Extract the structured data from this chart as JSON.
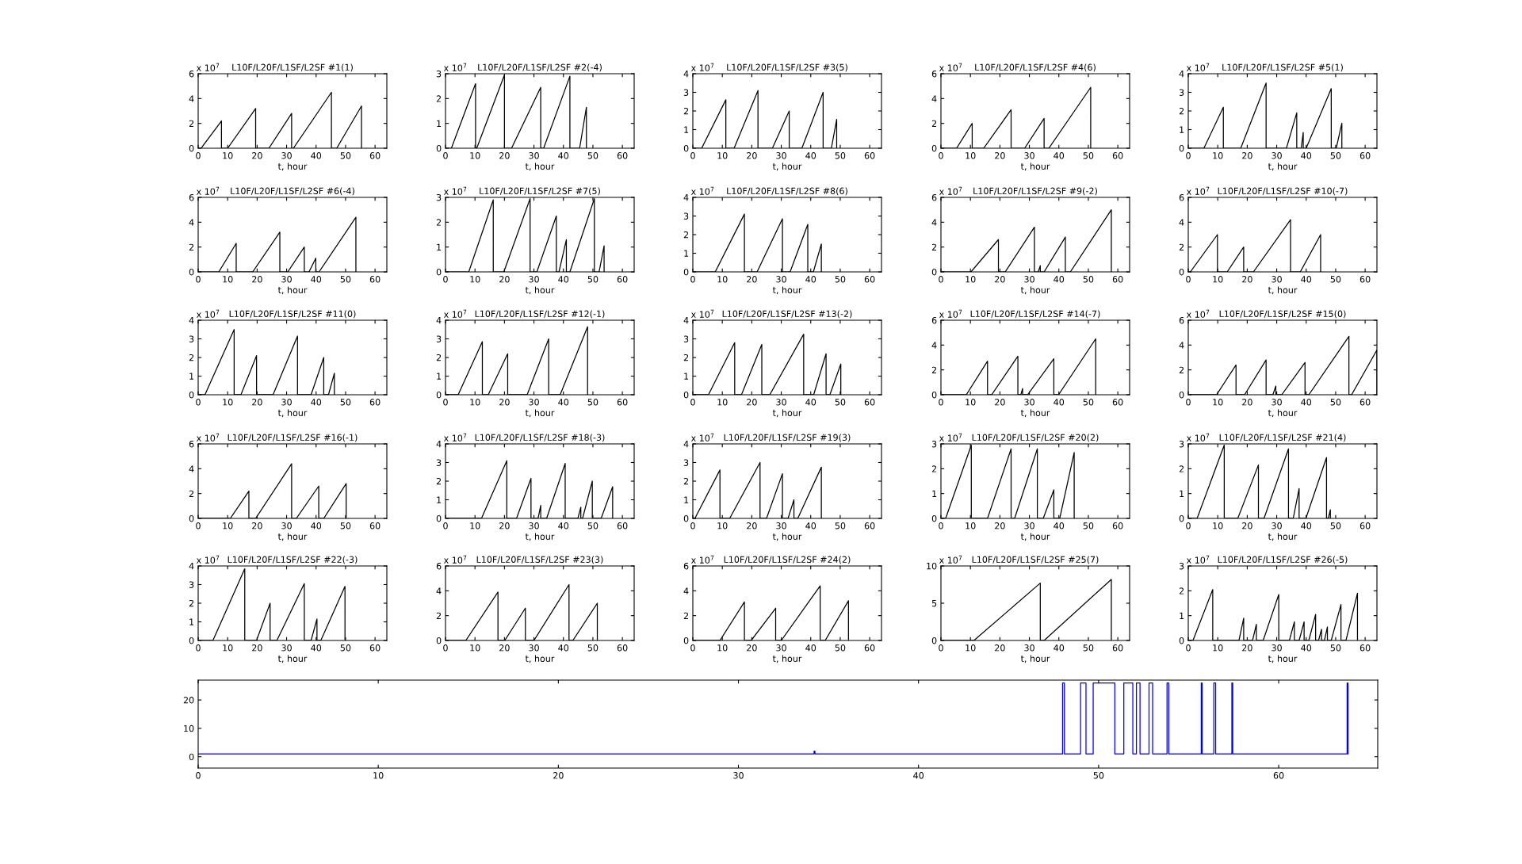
{
  "chart_data": [
    {
      "type": "line",
      "title": "L10F/L20F/L1SF/L2SF #1(1)",
      "xlabel": "t, hour",
      "annotations": [
        "x 10$^{7}$"
      ],
      "color": "#000000",
      "xlim": [
        0,
        64
      ],
      "ylim": [
        0,
        6
      ],
      "xticks": [
        0,
        10,
        20,
        30,
        40,
        50,
        60
      ],
      "yticks": [
        0,
        2,
        4,
        6
      ],
      "x": [
        0,
        1,
        7.9,
        7.9,
        10,
        19.5,
        19.5,
        24,
        31.7,
        31.7,
        32.3,
        45.2,
        45.2,
        47,
        55.4,
        55.4
      ],
      "values": [
        0,
        0,
        2.2,
        0,
        0,
        3.2,
        0,
        0,
        2.8,
        0,
        0,
        4.5,
        0,
        0,
        3.4,
        0
      ]
    },
    {
      "type": "line",
      "title": "L10F/L20F/L1SF/L2SF #2(-4)",
      "xlabel": "t, hour",
      "annotations": [
        "x 10$^{7}$"
      ],
      "color": "#000000",
      "xlim": [
        0,
        64
      ],
      "ylim": [
        0,
        3
      ],
      "xticks": [
        0,
        10,
        20,
        30,
        40,
        50,
        60
      ],
      "yticks": [
        0,
        1,
        2,
        3
      ],
      "x": [
        0,
        2,
        10.2,
        10.2,
        10.6,
        20,
        20,
        22.4,
        32.3,
        32.3,
        33.3,
        42.2,
        42.2,
        45.5,
        47.8,
        47.8
      ],
      "values": [
        0,
        0,
        2.6,
        0,
        0,
        2.95,
        0,
        0,
        2.45,
        0,
        0,
        2.9,
        0,
        0,
        1.65,
        0
      ]
    },
    {
      "type": "line",
      "title": "L10F/L20F/L1SF/L2SF #3(5)",
      "xlabel": "t, hour",
      "annotations": [
        "x 10$^{7}$"
      ],
      "color": "#000000",
      "xlim": [
        0,
        64
      ],
      "ylim": [
        0,
        4
      ],
      "xticks": [
        0,
        10,
        20,
        30,
        40,
        50,
        60
      ],
      "yticks": [
        0,
        1,
        2,
        3,
        4
      ],
      "x": [
        0,
        3,
        11.2,
        11.2,
        14,
        22.1,
        22.1,
        27,
        32.7,
        32.7,
        37,
        44.2,
        44.2,
        47,
        48.8,
        48.8
      ],
      "values": [
        0,
        0,
        2.6,
        0,
        0,
        3.1,
        0,
        0,
        2,
        0,
        0,
        3,
        0,
        0,
        1.55,
        0
      ]
    },
    {
      "type": "line",
      "title": "L10F/L20F/L1SF/L2SF #4(6)",
      "xlabel": "t, hour",
      "annotations": [
        "x 10$^{7}$"
      ],
      "color": "#000000",
      "xlim": [
        0,
        64
      ],
      "ylim": [
        0,
        6
      ],
      "xticks": [
        0,
        10,
        20,
        30,
        40,
        50,
        60
      ],
      "yticks": [
        0,
        2,
        4,
        6
      ],
      "x": [
        0,
        5.3,
        10.6,
        10.6,
        14.5,
        23.8,
        23.8,
        28.4,
        35,
        35,
        36.6,
        50.8,
        50.8
      ],
      "values": [
        0,
        0,
        2,
        0,
        0,
        3.1,
        0,
        0,
        2.4,
        0,
        0,
        4.9,
        0
      ]
    },
    {
      "type": "line",
      "title": "L10F/L20F/L1SF/L2SF #5(1)",
      "xlabel": "t, hour",
      "annotations": [
        "x 10$^{7}$"
      ],
      "color": "#000000",
      "xlim": [
        0,
        64
      ],
      "ylim": [
        0,
        4
      ],
      "xticks": [
        0,
        10,
        20,
        30,
        40,
        50,
        60
      ],
      "yticks": [
        0,
        1,
        2,
        3,
        4
      ],
      "x": [
        0,
        5.3,
        11.9,
        11.9,
        17.8,
        26.4,
        26.4,
        33.3,
        36.8,
        36.8,
        38.3,
        39,
        39,
        40,
        48.5,
        48.5,
        50.2,
        52.1,
        52.1
      ],
      "values": [
        0,
        0,
        2.2,
        0,
        0,
        3.5,
        0,
        0,
        1.9,
        0,
        0,
        0.85,
        0,
        0,
        3.2,
        0,
        0,
        1.35,
        0
      ]
    },
    {
      "type": "line",
      "title": "L10F/L20F/L1SF/L2SF #6(-4)",
      "xlabel": "t, hour",
      "annotations": [
        "x 10$^{7}$"
      ],
      "color": "#000000",
      "xlim": [
        0,
        64
      ],
      "ylim": [
        0,
        6
      ],
      "xticks": [
        0,
        10,
        20,
        30,
        40,
        50,
        60
      ],
      "yticks": [
        0,
        2,
        4,
        6
      ],
      "x": [
        0,
        7,
        12.9,
        12.9,
        18.5,
        27.7,
        27.7,
        30.4,
        36,
        36,
        37.6,
        39.9,
        39.9,
        41,
        53.5,
        53.5
      ],
      "values": [
        0,
        0,
        2.3,
        0,
        0,
        3.2,
        0,
        0,
        2,
        0,
        0,
        1.1,
        0,
        0,
        4.4,
        0
      ]
    },
    {
      "type": "line",
      "title": "L10F/L20F/L1SF/L2SF #7(5)",
      "xlabel": "t, hour",
      "annotations": [
        "x 10$^{7}$"
      ],
      "color": "#000000",
      "xlim": [
        0,
        64
      ],
      "ylim": [
        0,
        3
      ],
      "xticks": [
        0,
        10,
        20,
        30,
        40,
        50,
        60
      ],
      "yticks": [
        0,
        1,
        2,
        3
      ],
      "x": [
        0,
        7.9,
        16.2,
        16.2,
        19.8,
        28.7,
        28.7,
        31,
        37.6,
        37.6,
        38.5,
        41,
        41,
        42.2,
        50.5,
        50.5,
        52.1,
        53.8,
        53.8
      ],
      "values": [
        0,
        0,
        2.9,
        0,
        0,
        2.95,
        0,
        0,
        2.25,
        0,
        0,
        1.3,
        0,
        0,
        2.95,
        0,
        0,
        1.05,
        0
      ]
    },
    {
      "type": "line",
      "title": "L10F/L20F/L1SF/L2SF #8(6)",
      "xlabel": "t, hour",
      "annotations": [
        "x 10$^{7}$"
      ],
      "color": "#000000",
      "xlim": [
        0,
        64
      ],
      "ylim": [
        0,
        4
      ],
      "xticks": [
        0,
        10,
        20,
        30,
        40,
        50,
        60
      ],
      "yticks": [
        0,
        1,
        2,
        3,
        4
      ],
      "x": [
        0,
        7.6,
        17.5,
        17.5,
        21.8,
        30.4,
        30.4,
        33,
        39,
        39,
        40.9,
        43.6,
        43.6
      ],
      "values": [
        0,
        0,
        3.1,
        0,
        0,
        2.85,
        0,
        0,
        2.55,
        0,
        0,
        1.5,
        0
      ]
    },
    {
      "type": "line",
      "title": "L10F/L20F/L1SF/L2SF #9(-2)",
      "xlabel": "t, hour",
      "annotations": [
        "x 10$^{7}$"
      ],
      "color": "#000000",
      "xlim": [
        0,
        64
      ],
      "ylim": [
        0,
        6
      ],
      "xticks": [
        0,
        10,
        20,
        30,
        40,
        50,
        60
      ],
      "yticks": [
        0,
        2,
        4,
        6
      ],
      "x": [
        0,
        10.2,
        19.5,
        19.5,
        21.8,
        31.7,
        31.7,
        33,
        33.7,
        33.7,
        35,
        42.2,
        42.2,
        43.9,
        57.8,
        57.8
      ],
      "values": [
        0,
        0,
        2.6,
        0,
        0,
        3.6,
        0,
        0,
        0.5,
        0,
        0,
        2.8,
        0,
        0,
        5,
        0
      ]
    },
    {
      "type": "line",
      "title": "L10F/L20F/L1SF/L2SF #10(-7)",
      "xlabel": "t, hour",
      "annotations": [
        "x 10$^{7}$"
      ],
      "color": "#000000",
      "xlim": [
        0,
        64
      ],
      "ylim": [
        0,
        6
      ],
      "xticks": [
        0,
        10,
        20,
        30,
        40,
        50,
        60
      ],
      "yticks": [
        0,
        2,
        4,
        6
      ],
      "x": [
        0,
        0.7,
        9.9,
        9.9,
        13.2,
        18.8,
        18.8,
        22.1,
        34.7,
        34.7,
        38,
        44.9,
        44.9
      ],
      "values": [
        0,
        0,
        3,
        0,
        0,
        2,
        0,
        0,
        4.2,
        0,
        0,
        3,
        0
      ]
    },
    {
      "type": "line",
      "title": "L10F/L20F/L1SF/L2SF #11(0)",
      "xlabel": "t, hour",
      "annotations": [
        "x 10$^{7}$"
      ],
      "color": "#000000",
      "xlim": [
        0,
        64
      ],
      "ylim": [
        0,
        4
      ],
      "xticks": [
        0,
        10,
        20,
        30,
        40,
        50,
        60
      ],
      "yticks": [
        0,
        1,
        2,
        3,
        4
      ],
      "x": [
        0,
        2.3,
        12.2,
        12.2,
        14.5,
        19.8,
        19.8,
        25.4,
        33.7,
        33.7,
        38.3,
        42.6,
        42.6,
        44.2,
        46.2,
        46.2
      ],
      "values": [
        0,
        0,
        3.5,
        0,
        0,
        2.1,
        0,
        0,
        3.15,
        0,
        0,
        2,
        0,
        0,
        1.15,
        0
      ]
    },
    {
      "type": "line",
      "title": "L10F/L20F/L1SF/L2SF #12(-1)",
      "xlabel": "t, hour",
      "annotations": [
        "x 10$^{7}$"
      ],
      "color": "#000000",
      "xlim": [
        0,
        64
      ],
      "ylim": [
        0,
        4
      ],
      "xticks": [
        0,
        10,
        20,
        30,
        40,
        50,
        60
      ],
      "yticks": [
        0,
        1,
        2,
        3,
        4
      ],
      "x": [
        0,
        4.3,
        12.5,
        12.5,
        14.5,
        21.1,
        21.1,
        27.7,
        35,
        35,
        38.9,
        48.2,
        48.2
      ],
      "values": [
        0,
        0,
        2.85,
        0,
        0,
        2.2,
        0,
        0,
        3,
        0,
        0,
        3.65,
        0
      ]
    },
    {
      "type": "line",
      "title": "L10F/L20F/L1SF/L2SF #13(-2)",
      "xlabel": "t, hour",
      "annotations": [
        "x 10$^{7}$"
      ],
      "color": "#000000",
      "xlim": [
        0,
        64
      ],
      "ylim": [
        0,
        4
      ],
      "xticks": [
        0,
        10,
        20,
        30,
        40,
        50,
        60
      ],
      "yticks": [
        0,
        1,
        2,
        3,
        4
      ],
      "x": [
        0,
        5.3,
        14.2,
        14.2,
        16.5,
        23.4,
        23.4,
        26.1,
        37.6,
        37.6,
        41,
        45.2,
        45.2,
        46.5,
        50.2,
        50.2
      ],
      "values": [
        0,
        0,
        2.8,
        0,
        0,
        2.7,
        0,
        0,
        3.25,
        0,
        0,
        2.2,
        0,
        0,
        1.65,
        0
      ]
    },
    {
      "type": "line",
      "title": "L10F/L20F/L1SF/L2SF #14(-7)",
      "xlabel": "t, hour",
      "annotations": [
        "x 10$^{7}$"
      ],
      "color": "#000000",
      "xlim": [
        0,
        64
      ],
      "ylim": [
        0,
        6
      ],
      "xticks": [
        0,
        10,
        20,
        30,
        40,
        50,
        60
      ],
      "yticks": [
        0,
        2,
        4,
        6
      ],
      "x": [
        0,
        8.6,
        15.8,
        15.8,
        17.2,
        26.1,
        26.1,
        27.1,
        27.7,
        27.7,
        29.4,
        38.3,
        38.3,
        39.9,
        52.5,
        52.5
      ],
      "values": [
        0,
        0,
        2.7,
        0,
        0,
        3.1,
        0,
        0,
        0.5,
        0,
        0,
        2.9,
        0,
        0,
        4.5,
        0
      ]
    },
    {
      "type": "line",
      "title": "L10F/L20F/L1SF/L2SF #15(0)",
      "xlabel": "t, hour",
      "annotations": [
        "x 10$^{7}$"
      ],
      "color": "#000000",
      "xlim": [
        0,
        64
      ],
      "ylim": [
        0,
        6
      ],
      "xticks": [
        0,
        10,
        20,
        30,
        40,
        50,
        60
      ],
      "yticks": [
        0,
        2,
        4,
        6
      ],
      "x": [
        0,
        9.6,
        16.2,
        16.2,
        19.1,
        26.4,
        26.4,
        28.7,
        29.7,
        29.7,
        31.7,
        39.6,
        39.6,
        40.9,
        54.5,
        54.5,
        55.4,
        64,
        64
      ],
      "values": [
        0,
        0,
        2.4,
        0,
        0,
        2.8,
        0,
        0,
        0.7,
        0,
        0,
        2.6,
        0,
        0,
        4.7,
        0,
        0,
        3.6,
        0
      ]
    },
    {
      "type": "line",
      "title": "L10F/L20F/L1SF/L2SF #16(-1)",
      "xlabel": "t, hour",
      "annotations": [
        "x 10$^{7}$"
      ],
      "color": "#000000",
      "xlim": [
        0,
        64
      ],
      "ylim": [
        0,
        6
      ],
      "xticks": [
        0,
        10,
        20,
        30,
        40,
        50,
        60
      ],
      "yticks": [
        0,
        2,
        4,
        6
      ],
      "x": [
        0,
        10.9,
        17.2,
        17.2,
        19.5,
        31.7,
        31.7,
        33.3,
        40.9,
        40.9,
        42.6,
        50.2,
        50.2
      ],
      "values": [
        0,
        0,
        2.2,
        0,
        0,
        4.4,
        0,
        0,
        2.6,
        0,
        0,
        2.8,
        0
      ]
    },
    {
      "type": "line",
      "title": "L10F/L20F/L1SF/L2SF #18(-3)",
      "xlabel": "t, hour",
      "annotations": [
        "x 10$^{7}$"
      ],
      "color": "#000000",
      "xlim": [
        0,
        64
      ],
      "ylim": [
        0,
        4
      ],
      "xticks": [
        0,
        10,
        20,
        30,
        40,
        50,
        60
      ],
      "yticks": [
        0,
        1,
        2,
        3,
        4
      ],
      "x": [
        0,
        12.2,
        20.8,
        20.8,
        24.1,
        29,
        29,
        31.4,
        32.3,
        32.3,
        34.3,
        40.6,
        40.6,
        44.9,
        45.9,
        45.9,
        46.5,
        49.8,
        49.8,
        52.8,
        56.7,
        56.7
      ],
      "values": [
        0,
        0,
        3.1,
        0,
        0,
        2.15,
        0,
        0,
        0.7,
        0,
        0,
        2.95,
        0,
        0,
        0.6,
        0,
        0,
        2,
        0,
        0,
        1.7,
        0
      ]
    },
    {
      "type": "line",
      "title": "L10F/L20F/L1SF/L2SF #19(3)",
      "xlabel": "t, hour",
      "annotations": [
        "x 10$^{7}$"
      ],
      "color": "#000000",
      "xlim": [
        0,
        64
      ],
      "ylim": [
        0,
        4
      ],
      "xticks": [
        0,
        10,
        20,
        30,
        40,
        50,
        60
      ],
      "yticks": [
        0,
        1,
        2,
        3,
        4
      ],
      "x": [
        0,
        0.7,
        9.2,
        9.2,
        12.5,
        22.8,
        22.8,
        25,
        30.4,
        30.4,
        32.3,
        34.3,
        34.3,
        35.6,
        43.6,
        43.6
      ],
      "values": [
        0,
        0,
        2.6,
        0,
        0,
        3,
        0,
        0,
        2.4,
        0,
        0,
        1,
        0,
        0,
        2.75,
        0
      ]
    },
    {
      "type": "line",
      "title": "L10F/L20F/L1SF/L2SF #20(2)",
      "xlabel": "t, hour",
      "annotations": [
        "x 10$^{7}$"
      ],
      "color": "#000000",
      "xlim": [
        0,
        64
      ],
      "ylim": [
        0,
        3
      ],
      "xticks": [
        0,
        10,
        20,
        30,
        40,
        50,
        60
      ],
      "yticks": [
        0,
        1,
        2,
        3
      ],
      "x": [
        0,
        1.6,
        10.3,
        10.3,
        15.8,
        23.8,
        23.8,
        25,
        32.7,
        32.7,
        34.7,
        38.3,
        38.3,
        40.3,
        45.2,
        45.2
      ],
      "values": [
        0,
        0,
        2.95,
        0,
        0,
        2.8,
        0,
        0,
        2.8,
        0,
        0,
        1.15,
        0,
        0,
        2.65,
        0
      ]
    },
    {
      "type": "line",
      "title": "L10F/L20F/L1SF/L2SF #21(4)",
      "xlabel": "t, hour",
      "annotations": [
        "x 10$^{7}$"
      ],
      "color": "#000000",
      "xlim": [
        0,
        64
      ],
      "ylim": [
        0,
        3
      ],
      "xticks": [
        0,
        10,
        20,
        30,
        40,
        50,
        60
      ],
      "yticks": [
        0,
        1,
        2,
        3
      ],
      "x": [
        0,
        3,
        12.2,
        12.2,
        16.8,
        23.8,
        23.8,
        25.7,
        34,
        34,
        35.6,
        37.6,
        37.6,
        39.9,
        46.9,
        46.9,
        47.5,
        48.2,
        48.2
      ],
      "values": [
        0,
        0,
        2.95,
        0,
        0,
        2.15,
        0,
        0,
        2.8,
        0,
        0,
        1.2,
        0,
        0,
        2.45,
        0,
        0,
        0.35,
        0
      ]
    },
    {
      "type": "line",
      "title": "L10F/L20F/L1SF/L2SF #22(-3)",
      "xlabel": "t, hour",
      "annotations": [
        "x 10$^{7}$"
      ],
      "color": "#000000",
      "xlim": [
        0,
        64
      ],
      "ylim": [
        0,
        4
      ],
      "xticks": [
        0,
        10,
        20,
        30,
        40,
        50,
        60
      ],
      "yticks": [
        0,
        1,
        2,
        3,
        4
      ],
      "x": [
        0,
        5,
        15.8,
        15.8,
        19.8,
        24.4,
        24.4,
        26.7,
        36,
        36,
        38.3,
        40.3,
        40.3,
        41.6,
        49.8,
        49.8
      ],
      "values": [
        0,
        0,
        3.85,
        0,
        0,
        2,
        0,
        0,
        3.05,
        0,
        0,
        1.15,
        0,
        0,
        2.9,
        0
      ]
    },
    {
      "type": "line",
      "title": "L10F/L20F/L1SF/L2SF #23(3)",
      "xlabel": "t, hour",
      "annotations": [
        "x 10$^{7}$"
      ],
      "color": "#000000",
      "xlim": [
        0,
        64
      ],
      "ylim": [
        0,
        6
      ],
      "xticks": [
        0,
        10,
        20,
        30,
        40,
        50,
        60
      ],
      "yticks": [
        0,
        2,
        4,
        6
      ],
      "x": [
        0,
        6.9,
        17.8,
        17.8,
        20.1,
        27.1,
        27.1,
        30,
        41.9,
        41.9,
        43.2,
        51.5,
        51.5
      ],
      "values": [
        0,
        0,
        3.9,
        0,
        0,
        2.6,
        0,
        0,
        4.5,
        0,
        0,
        3,
        0
      ]
    },
    {
      "type": "line",
      "title": "L10F/L20F/L1SF/L2SF #24(2)",
      "xlabel": "t, hour",
      "annotations": [
        "x 10$^{7}$"
      ],
      "color": "#000000",
      "xlim": [
        0,
        64
      ],
      "ylim": [
        0,
        6
      ],
      "xticks": [
        0,
        10,
        20,
        30,
        40,
        50,
        60
      ],
      "yticks": [
        0,
        2,
        4,
        6
      ],
      "x": [
        0,
        9.2,
        17.5,
        17.5,
        19.8,
        28.1,
        28.1,
        30,
        43.2,
        43.2,
        44.9,
        52.8,
        52.8
      ],
      "values": [
        0,
        0,
        3.1,
        0,
        0,
        2.6,
        0,
        0,
        4.4,
        0,
        0,
        3.2,
        0
      ]
    },
    {
      "type": "line",
      "title": "L10F/L20F/L1SF/L2SF #25(7)",
      "xlabel": "t, hour",
      "annotations": [
        "x 10$^{7}$"
      ],
      "color": "#000000",
      "xlim": [
        0,
        64
      ],
      "ylim": [
        0,
        10
      ],
      "xticks": [
        0,
        10,
        20,
        30,
        40,
        50,
        60
      ],
      "yticks": [
        0,
        5,
        10
      ],
      "x": [
        0,
        11.2,
        33.7,
        33.7,
        35,
        57.8,
        57.8
      ],
      "values": [
        0,
        0,
        7.7,
        0,
        0,
        8.2,
        0
      ]
    },
    {
      "type": "line",
      "title": "L10F/L20F/L1SF/L2SF #26(-5)",
      "xlabel": "t, hour",
      "annotations": [
        "x 10$^{7}$"
      ],
      "color": "#000000",
      "xlim": [
        0,
        64
      ],
      "ylim": [
        0,
        3
      ],
      "xticks": [
        0,
        10,
        20,
        30,
        40,
        50,
        60
      ],
      "yticks": [
        0,
        1,
        2,
        3
      ],
      "x": [
        0,
        1.6,
        8.3,
        8.3,
        17.2,
        18.8,
        18.8,
        21.8,
        23.1,
        23.1,
        25.4,
        30.7,
        30.7,
        34.3,
        36,
        36,
        37.6,
        39.3,
        39.3,
        40.9,
        43.2,
        43.2,
        44.2,
        45.2,
        45.2,
        46.2,
        47.2,
        47.2,
        48.5,
        51.8,
        51.8,
        53.5,
        57.4,
        57.4
      ],
      "values": [
        0,
        0,
        2.05,
        0,
        0,
        0.9,
        0,
        0,
        0.65,
        0,
        0,
        1.85,
        0,
        0,
        0.75,
        0,
        0,
        0.75,
        0,
        0,
        1.05,
        0,
        0,
        0.45,
        0,
        0,
        0.55,
        0,
        0,
        1.45,
        0,
        0,
        1.9,
        0
      ]
    },
    {
      "type": "step",
      "color": "#0000ff",
      "xlim": [
        0,
        65.5
      ],
      "ylim": [
        -4,
        27
      ],
      "xticks": [
        0,
        10,
        20,
        30,
        40,
        50,
        60
      ],
      "yticks": [
        0,
        10,
        20
      ],
      "x": [
        0,
        34.2,
        34.25,
        48,
        48.1,
        49,
        49.3,
        49.7,
        50.9,
        51.4,
        51.9,
        52.1,
        52.3,
        52.8,
        53,
        53.8,
        53.9,
        55.7,
        55.75,
        56.4,
        56.5,
        57.4,
        57.45,
        63.8,
        63.85
      ],
      "values": [
        1,
        2,
        1,
        26,
        1,
        26,
        1,
        26,
        1,
        26,
        1,
        26,
        1,
        26,
        1,
        26,
        1,
        26,
        1,
        26,
        1,
        26,
        1,
        26,
        1
      ]
    }
  ]
}
